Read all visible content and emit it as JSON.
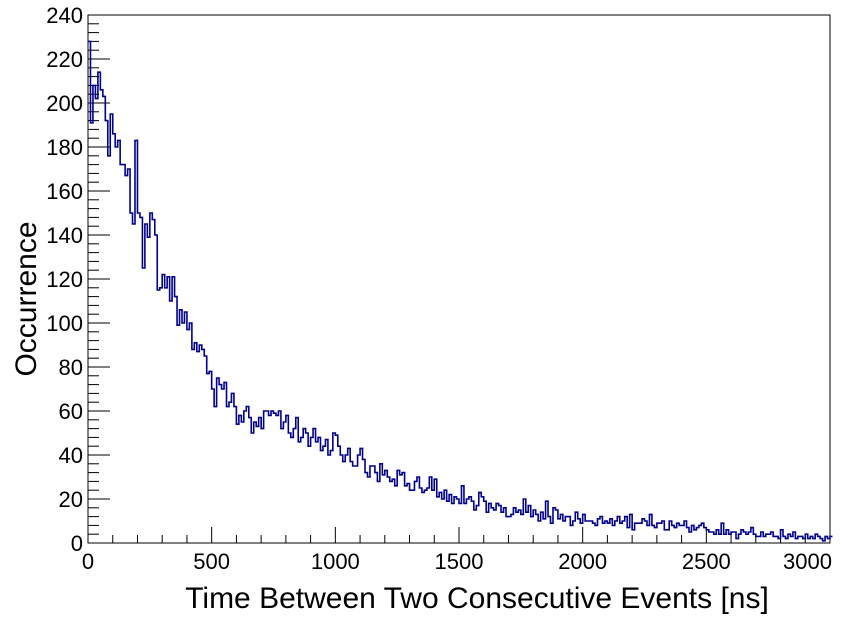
{
  "chart_data": {
    "type": "histogram",
    "xlabel": "Time Between Two Consecutive Events [ns]",
    "ylabel": "Occurrence",
    "xlim": [
      0,
      3000
    ],
    "ylim": [
      0,
      240
    ],
    "x_ticks": [
      0,
      500,
      1000,
      1500,
      2000,
      2500,
      3000
    ],
    "y_ticks": [
      0,
      20,
      40,
      60,
      80,
      100,
      120,
      140,
      160,
      180,
      200,
      220,
      240
    ],
    "grid": false,
    "legend": "none",
    "bin_width": 10,
    "line_color": "#00008b",
    "counts": [
      228,
      191,
      208,
      202,
      214,
      206,
      203,
      192,
      176,
      195,
      186,
      180,
      183,
      172,
      172,
      167,
      170,
      150,
      145,
      183,
      150,
      148,
      125,
      145,
      139,
      150,
      147,
      140,
      115,
      116,
      122,
      116,
      121,
      110,
      121,
      112,
      99,
      106,
      100,
      105,
      97,
      100,
      88,
      91,
      87,
      90,
      88,
      85,
      77,
      78,
      70,
      62,
      75,
      72,
      70,
      73,
      62,
      64,
      68,
      62,
      54,
      58,
      55,
      60,
      62,
      57,
      50,
      55,
      53,
      57,
      52,
      60,
      60,
      58,
      60,
      59,
      58,
      60,
      52,
      55,
      58,
      50,
      48,
      52,
      57,
      46,
      48,
      52,
      50,
      44,
      48,
      52,
      46,
      48,
      42,
      44,
      47,
      40,
      42,
      50,
      49,
      44,
      40,
      37,
      40,
      43,
      37,
      35,
      35,
      40,
      43,
      38,
      32,
      30,
      35,
      35,
      32,
      28,
      36,
      31,
      33,
      30,
      28,
      29,
      26,
      33,
      31,
      32,
      26,
      27,
      24,
      24,
      28,
      30,
      25,
      23,
      24,
      25,
      30,
      24,
      29,
      21,
      23,
      20,
      24,
      19,
      22,
      18,
      21,
      20,
      18,
      26,
      18,
      20,
      21,
      19,
      15,
      17,
      23,
      21,
      19,
      14,
      18,
      16,
      15,
      18,
      17,
      14,
      16,
      12,
      12,
      13,
      16,
      14,
      15,
      13,
      20,
      14,
      17,
      12,
      15,
      13,
      10,
      14,
      11,
      19,
      12,
      9,
      16,
      15,
      11,
      13,
      10,
      12,
      12,
      8,
      10,
      14,
      11,
      9,
      13,
      10,
      10,
      10,
      9,
      8,
      11,
      12,
      9,
      10,
      9,
      11,
      8,
      10,
      12,
      9,
      10,
      12,
      7,
      13,
      6,
      9,
      9,
      9,
      11,
      10,
      8,
      13,
      8,
      7,
      9,
      9,
      10,
      6,
      6,
      10,
      8,
      7,
      9,
      8,
      8,
      10,
      7,
      5,
      8,
      6,
      7,
      8,
      9,
      7,
      6,
      5,
      5,
      4,
      6,
      4,
      9,
      4,
      6,
      4,
      5,
      5,
      2,
      4,
      6,
      5,
      4,
      5,
      7,
      4,
      3,
      3,
      5,
      3,
      4,
      4,
      5,
      3,
      3,
      2,
      6,
      3,
      2,
      4,
      3,
      5,
      2,
      3,
      3,
      2,
      4,
      2,
      3,
      2,
      4,
      3,
      2,
      1,
      3,
      2,
      3
    ]
  }
}
